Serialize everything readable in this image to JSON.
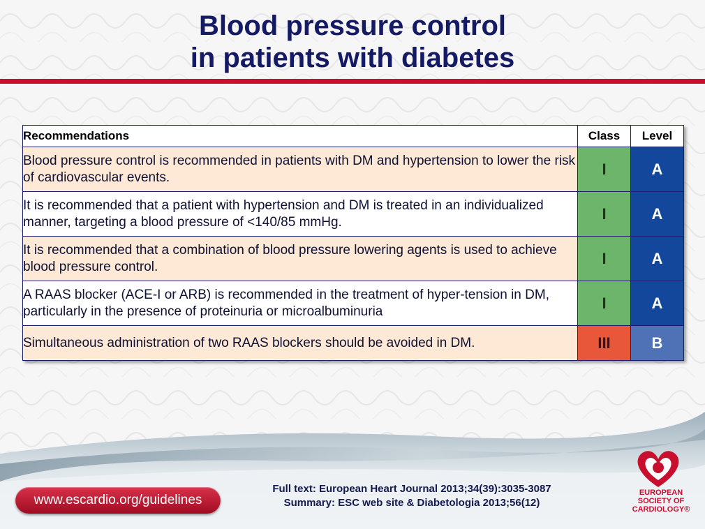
{
  "title": {
    "line1": "Blood pressure control",
    "line2": "in patients with diabetes"
  },
  "table": {
    "headers": {
      "recommendations": "Recommendations",
      "class": "Class",
      "level": "Level"
    },
    "rows": [
      {
        "text": "Blood pressure control is recommended in patients with DM and hypertension to lower the risk of cardiovascular events.",
        "class": "I",
        "level": "A"
      },
      {
        "text": "It is recommended that a patient with hypertension and DM is treated in an individualized manner, targeting a blood pressure of <140/85 mmHg.",
        "class": "I",
        "level": "A"
      },
      {
        "text": "It is recommended that a combination of blood pressure lowering agents is used to achieve blood pressure control.",
        "class": "I",
        "level": "A"
      },
      {
        "text": "A RAAS blocker (ACE-I or ARB) is recommended in the treatment of hyper-tension in DM, particularly in the presence of proteinuria or microalbuminuria",
        "class": "I",
        "level": "A"
      },
      {
        "text": "Simultaneous administration of two RAAS blockers should be avoided in DM.",
        "class": "III",
        "level": "B"
      }
    ]
  },
  "footer": {
    "url": "www.escardio.org/guidelines",
    "ref_full": "Full text: European Heart Journal 2013;34(39):3035-3087",
    "ref_summary": "Summary: ESC web site & Diabetologia 2013;56(12)"
  },
  "logo": {
    "line1": "EUROPEAN",
    "line2": "SOCIETY OF",
    "line3": "CARDIOLOGY®"
  },
  "colors": {
    "title": "#141a63",
    "accent_red": "#c8102e",
    "class_I": "#6db56a",
    "class_III": "#e8573a",
    "level_A": "#12479b",
    "level_B": "#4f71b5",
    "row_shade": "#fde9d6"
  }
}
